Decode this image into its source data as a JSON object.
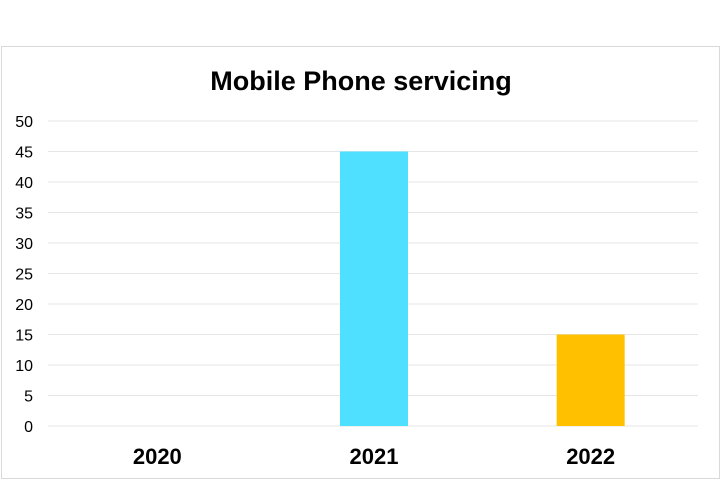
{
  "chart_data": {
    "type": "bar",
    "title": "Mobile Phone servicing",
    "xlabel": "",
    "ylabel": "",
    "categories": [
      "2020",
      "2021",
      "2022"
    ],
    "values": [
      0,
      45,
      15
    ],
    "bar_colors": [
      "#4FE0FF",
      "#4FE0FF",
      "#FFC000"
    ],
    "ylim": [
      0,
      50
    ],
    "yticks": [
      "0",
      "5",
      "10",
      "15",
      "20",
      "25",
      "30",
      "35",
      "40",
      "45",
      "50"
    ],
    "grid": true,
    "legend": "none"
  }
}
